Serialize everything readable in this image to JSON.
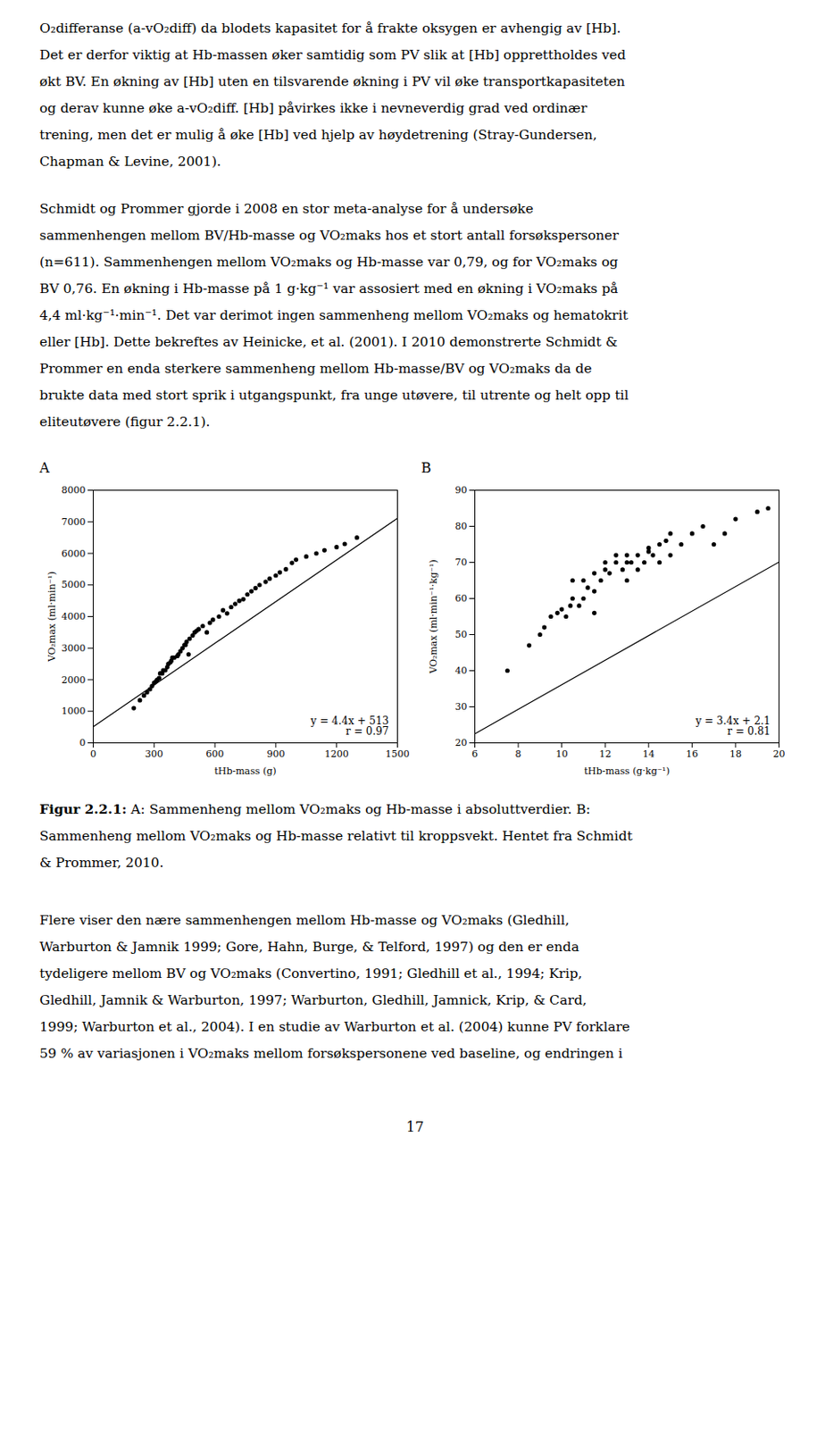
{
  "chart_data": [
    {
      "type": "scatter",
      "title": "A",
      "xlabel": "tHb-mass (g)",
      "ylabel": "VO₂max (ml·min⁻¹)",
      "annotations": [
        "y = 4.4x + 513",
        "r = 0.97"
      ],
      "xlim": [
        0,
        1500
      ],
      "ylim": [
        0,
        8000
      ],
      "xticks": [
        0,
        300,
        600,
        900,
        1200,
        1500
      ],
      "yticks": [
        0,
        1000,
        2000,
        3000,
        4000,
        5000,
        6000,
        7000,
        8000
      ],
      "series": [
        {
          "type": "scatter",
          "color": "black",
          "marker": "circle",
          "x": [
            200,
            230,
            250,
            265,
            280,
            290,
            300,
            310,
            315,
            325,
            330,
            340,
            345,
            355,
            365,
            370,
            380,
            385,
            390,
            400,
            415,
            420,
            430,
            440,
            450,
            455,
            460,
            470,
            475,
            490,
            500,
            510,
            520,
            540,
            560,
            575,
            590,
            620,
            640,
            660,
            680,
            700,
            720,
            740,
            760,
            780,
            800,
            820,
            850,
            870,
            900,
            920,
            950,
            980,
            1000,
            1050,
            1100,
            1140,
            1200,
            1240,
            1300
          ],
          "values": [
            1100,
            1350,
            1500,
            1600,
            1700,
            1800,
            1900,
            1950,
            2000,
            2050,
            2200,
            2200,
            2300,
            2300,
            2400,
            2500,
            2550,
            2600,
            2700,
            2700,
            2750,
            2800,
            2900,
            3000,
            3100,
            3100,
            3200,
            2800,
            3300,
            3400,
            3500,
            3550,
            3600,
            3700,
            3500,
            3800,
            3900,
            4000,
            4200,
            4100,
            4300,
            4400,
            4500,
            4550,
            4700,
            4800,
            4900,
            5000,
            5100,
            5200,
            5300,
            5400,
            5500,
            5700,
            5800,
            5900,
            6000,
            6100,
            6200,
            6300,
            6500
          ]
        },
        {
          "type": "line",
          "color": "black",
          "line_style": "solid",
          "x": [
            0,
            1500
          ],
          "values": [
            513,
            7113
          ]
        }
      ]
    },
    {
      "type": "scatter",
      "title": "B",
      "xlabel": "tHb-mass (g·kg⁻¹)",
      "ylabel": "VO₂max (ml·min⁻¹·kg⁻¹)",
      "annotations": [
        "y = 3.4x + 2.1",
        "r = 0.81"
      ],
      "xlim": [
        6,
        20
      ],
      "ylim": [
        20,
        90
      ],
      "xticks": [
        6,
        8,
        10,
        12,
        14,
        16,
        18,
        20
      ],
      "yticks": [
        20,
        30,
        40,
        50,
        60,
        70,
        80,
        90
      ],
      "series": [
        {
          "type": "scatter",
          "color": "black",
          "marker": "circle",
          "x": [
            7.5,
            8.5,
            9.0,
            9.2,
            9.5,
            9.8,
            10.0,
            10.2,
            10.4,
            10.5,
            10.5,
            10.8,
            11.0,
            11.0,
            11.2,
            11.5,
            11.5,
            11.5,
            11.8,
            12.0,
            12.0,
            12.2,
            12.5,
            12.5,
            12.8,
            13.0,
            13.0,
            13.0,
            13.2,
            13.5,
            13.5,
            13.8,
            14.0,
            14.0,
            14.2,
            14.5,
            14.5,
            14.8,
            15.0,
            15.0,
            15.5,
            16.0,
            16.5,
            17.0,
            17.5,
            18.0,
            19.0,
            19.5
          ],
          "values": [
            40,
            47,
            50,
            52,
            55,
            56,
            57,
            55,
            58,
            60,
            65,
            58,
            60,
            65,
            63,
            62,
            67,
            56,
            65,
            68,
            70,
            67,
            70,
            72,
            68,
            65,
            70,
            72,
            70,
            68,
            72,
            70,
            74,
            73,
            72,
            75,
            70,
            76,
            72,
            78,
            75,
            78,
            80,
            75,
            78,
            82,
            84,
            85
          ]
        },
        {
          "type": "line",
          "color": "black",
          "line_style": "solid",
          "x": [
            6,
            20
          ],
          "values": [
            22.5,
            70.1
          ]
        }
      ]
    }
  ],
  "paragraphs": [
    [
      "O₂differanse (a-vO₂diff) da blodets kapasitet for å frakte oksygen er avhengig av [Hb].",
      "Det er derfor viktig at Hb-massen øker samtidig som PV slik at [Hb] opprettholdes ved",
      "økt BV. En økning av [Hb] uten en tilsvarende økning i PV vil øke transportkapasiteten",
      "og derav kunne øke a-vO₂diff. [Hb] påvirkes ikke i nevneverdig grad ved ordinær",
      "trening, men det er mulig å øke [Hb] ved hjelp av høydetrening (Stray-Gundersen,",
      "Chapman & Levine, 2001)."
    ],
    [
      "Schmidt og Prommer gjorde i 2008 en stor meta-analyse for å undersøke",
      "sammenhengen mellom BV/Hb-masse og VO₂maks hos et stort antall forsøkspersoner",
      "(n=611). Sammenhengen mellom VO₂maks og Hb-masse var 0,79, og for VO₂maks og",
      "BV 0,76. En økning i Hb-masse på 1 g·kg⁻¹ var assosiert med en økning i VO₂maks på",
      "4,4 ml·kg⁻¹·min⁻¹. Det var derimot ingen sammenheng mellom VO₂maks og hematokrit",
      "eller [Hb]. Dette bekreftes av Heinicke, et al. (2001). I 2010 demonstrerte Schmidt &",
      "Prommer en enda sterkere sammenheng mellom Hb-masse/BV og VO₂maks da de",
      "brukte data med stort sprik i utgangspunkt, fra unge utøvere, til utrente og helt opp til",
      "eliteutøvere (figur 2.2.1)."
    ]
  ],
  "caption": {
    "bold": "Figur 2.2.1:",
    "lines": [
      " A: Sammenheng mellom VO₂maks og Hb-masse i absoluttverdier. B:",
      "Sammenheng mellom VO₂maks og Hb-masse relativt til kroppsvekt. Hentet fra Schmidt",
      "& Prommer, 2010."
    ]
  },
  "bottom_paragraphs": [
    "Flere viser den nære sammenhengen mellom Hb-masse og VO₂maks (Gledhill,",
    "Warburton & Jamnik 1999; Gore, Hahn, Burge, & Telford, 1997) og den er enda",
    "tydeligere mellom BV og VO₂maks (Convertino, 1991; Gledhill et al., 1994; Krip,",
    "Gledhill, Jamnik & Warburton, 1997; Warburton, Gledhill, Jamnick, Krip, & Card,",
    "1999; Warburton et al., 2004). I en studie av Warburton et al. (2004) kunne PV forklare",
    "59 % av variasjonen i VO₂maks mellom forsøkspersonene ved baseline, og endringen i"
  ],
  "page_number": "17"
}
